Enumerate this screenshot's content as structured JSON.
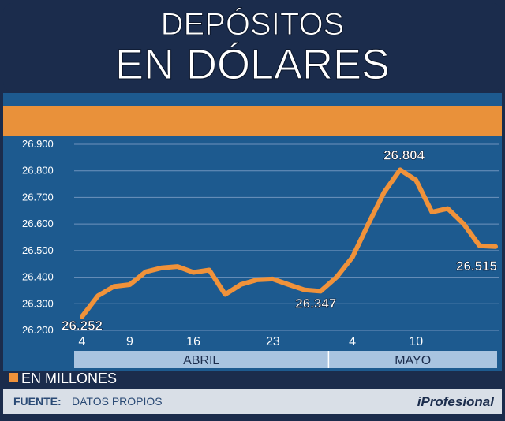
{
  "chart_data": {
    "type": "line",
    "title_line1": "DEPÓSITOS",
    "title_line2": "EN DÓLARES",
    "unit_legend": "EN MILLONES",
    "source_label": "FUENTE:",
    "source_value": "DATOS PROPIOS",
    "brand": "iProfesional",
    "y_ticks": [
      "26.900",
      "26.800",
      "26.700",
      "26.600",
      "26.500",
      "26.400",
      "26.300",
      "26.200"
    ],
    "y_tick_values": [
      26900,
      26800,
      26700,
      26600,
      26500,
      26400,
      26300,
      26200
    ],
    "ylim": [
      26200,
      26900
    ],
    "x_ticks": [
      {
        "label": "4",
        "index": 0
      },
      {
        "label": "9",
        "index": 3
      },
      {
        "label": "16",
        "index": 7
      },
      {
        "label": "23",
        "index": 12
      },
      {
        "label": "4",
        "index": 17
      },
      {
        "label": "10",
        "index": 21
      }
    ],
    "months": [
      {
        "label": "ABRIL",
        "from": 0,
        "to": 15
      },
      {
        "label": "MAYO",
        "from": 15,
        "to": 22
      }
    ],
    "values": [
      26252,
      26330,
      26365,
      26372,
      26420,
      26435,
      26440,
      26418,
      26427,
      26335,
      26373,
      26390,
      26393,
      26372,
      26352,
      26347,
      26400,
      26475,
      26600,
      26720,
      26804,
      26765,
      26645,
      26658,
      26600,
      26518,
      26515
    ],
    "annotations": [
      {
        "text": "26.252",
        "index": 0
      },
      {
        "text": "26.347",
        "index": 15
      },
      {
        "text": "26.804",
        "index": 20
      },
      {
        "text": "26.515",
        "index": 26
      }
    ],
    "colors": {
      "background": "#1b2c4c",
      "plot": "#1d5a8f",
      "line": "#f0923a",
      "band": "#e9913a",
      "title": "#ffffff",
      "month_bar": "#a9c4e0"
    },
    "grid": true
  }
}
